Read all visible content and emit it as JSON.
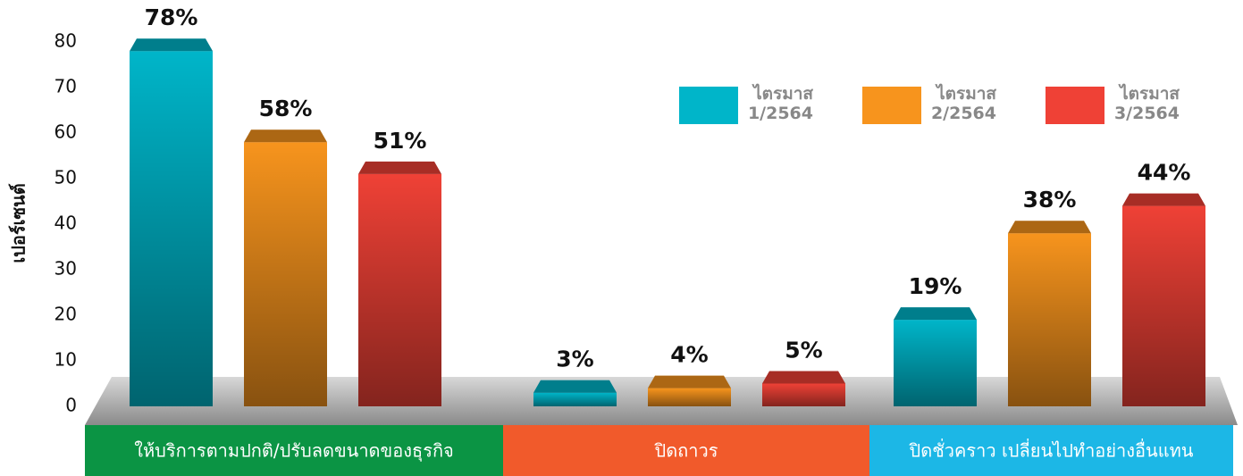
{
  "chart_data": {
    "type": "bar",
    "y_label": "เปอร์เซนต์",
    "categories": [
      "ให้บริการตามปกติ/ปรับลดขนาดของธุรกิจ",
      "ปิดถาวร",
      "ปิดชั่วคราว เปลี่ยนไปทำอย่างอื่นแทน"
    ],
    "category_colors": [
      "#0b9444",
      "#f15a2b",
      "#1cb7e6"
    ],
    "series": [
      {
        "name": "ไตรมาส 1/2564",
        "color": "#00b5c9",
        "values": [
          78,
          3,
          19
        ],
        "value_labels": [
          "78%",
          "3%",
          "19%"
        ]
      },
      {
        "name": "ไตรมาส 2/2564",
        "color": "#f7941d",
        "values": [
          58,
          4,
          38
        ],
        "value_labels": [
          "58%",
          "4%",
          "38%"
        ]
      },
      {
        "name": "ไตรมาส 3/2564",
        "color": "#ef4136",
        "values": [
          51,
          5,
          44
        ],
        "value_labels": [
          "51%",
          "5%",
          "44%"
        ]
      }
    ],
    "ylim": [
      0,
      80
    ],
    "yticks": [
      0,
      10,
      20,
      30,
      40,
      50,
      60,
      70,
      80
    ],
    "legend": "top-right"
  }
}
